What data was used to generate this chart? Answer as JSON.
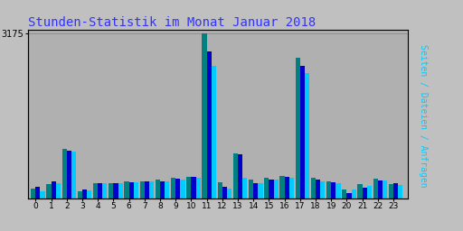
{
  "title": "Stunden-Statistik im Monat Januar 2018",
  "title_color": "#3333FF",
  "title_fontsize": 10,
  "hours": [
    0,
    1,
    2,
    3,
    4,
    5,
    6,
    7,
    8,
    9,
    10,
    11,
    12,
    13,
    14,
    15,
    16,
    17,
    18,
    19,
    20,
    21,
    22,
    23
  ],
  "seiten": [
    200,
    280,
    950,
    150,
    290,
    295,
    330,
    340,
    370,
    410,
    420,
    3175,
    310,
    870,
    360,
    410,
    430,
    2700,
    400,
    340,
    175,
    280,
    380,
    285
  ],
  "dateien": [
    230,
    340,
    920,
    168,
    305,
    300,
    320,
    330,
    335,
    390,
    415,
    2820,
    235,
    850,
    305,
    365,
    420,
    2550,
    370,
    310,
    105,
    215,
    345,
    300
  ],
  "anfragen": [
    150,
    290,
    910,
    155,
    295,
    295,
    320,
    325,
    340,
    375,
    400,
    2550,
    195,
    405,
    300,
    360,
    410,
    2420,
    330,
    300,
    178,
    248,
    348,
    268
  ],
  "color_seiten": "#008080",
  "color_dateien": "#0000CC",
  "color_anfragen": "#00CCFF",
  "ytick_value": 3175,
  "ytick_label": "3175",
  "bg_color": "#C0C0C0",
  "plot_bg_color": "#B0B0B0",
  "grid_color": "#909090",
  "border_color": "#000000",
  "right_label_seiten": "Seiten",
  "right_label_sep": " / ",
  "right_label_dateien": "Dateien",
  "right_label_anfragen": "Anfragen",
  "right_label_color_seiten": "#008080",
  "right_label_color_dateien": "#0000CC",
  "right_label_color_anfragen": "#00CCFF"
}
